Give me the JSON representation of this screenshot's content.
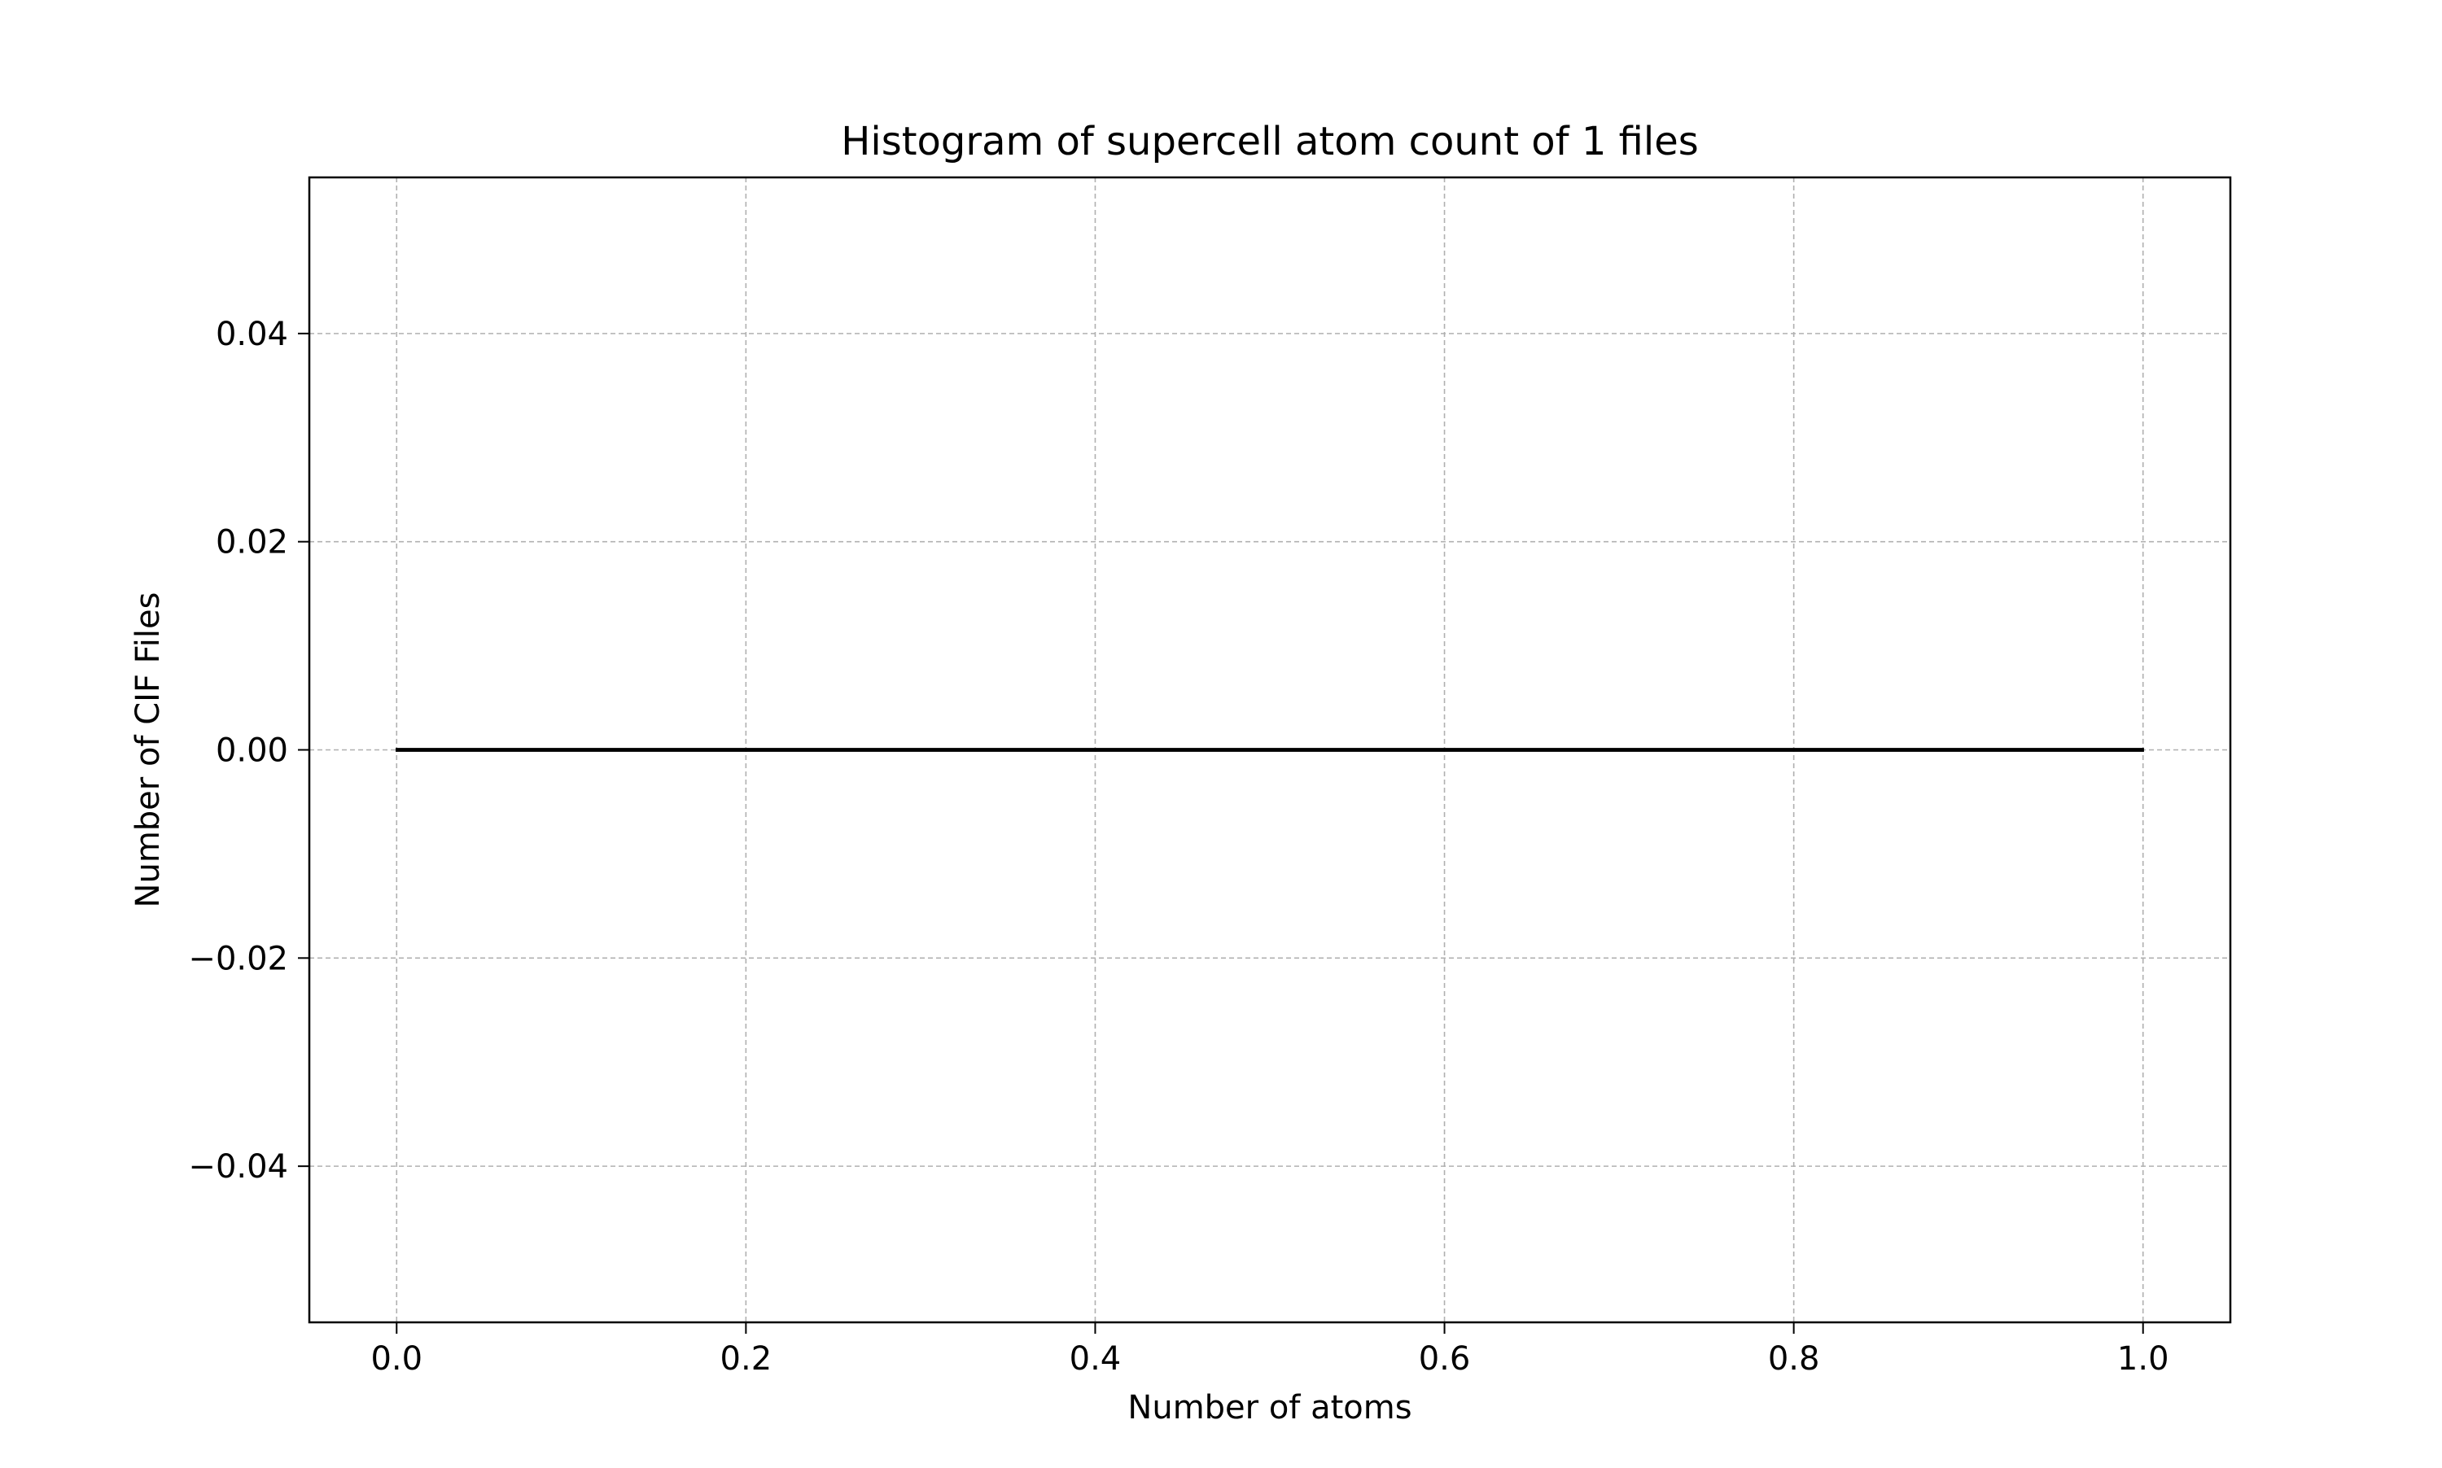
{
  "chart_data": {
    "type": "bar",
    "title": "Histogram of supercell atom count of 1 files",
    "xlabel": "Number of atoms",
    "ylabel": "Number of CIF Files",
    "xlim": [
      -0.05,
      1.05
    ],
    "ylim": [
      -0.055,
      0.055
    ],
    "x_ticks": [
      0.0,
      0.2,
      0.4,
      0.6,
      0.8,
      1.0
    ],
    "x_tick_labels": [
      "0.0",
      "0.2",
      "0.4",
      "0.6",
      "0.8",
      "1.0"
    ],
    "y_ticks": [
      0.04,
      0.02,
      0.0,
      -0.02,
      -0.04
    ],
    "y_tick_labels": [
      "0.04",
      "0.02",
      "0.00",
      "−0.02",
      "−0.04"
    ],
    "bins": [
      {
        "start": 0.0,
        "end": 1.0,
        "count": 0
      }
    ],
    "grid": true,
    "grid_style": "dashed",
    "legend": "none",
    "colors": {
      "grid": "#b0b0b0",
      "axes": "#000000",
      "bar_edge": "#000000",
      "text": "#000000"
    }
  }
}
